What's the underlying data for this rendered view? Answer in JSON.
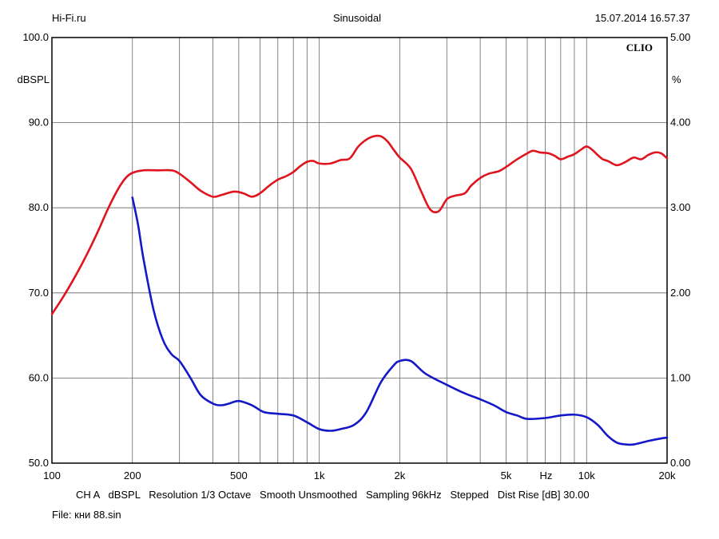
{
  "header": {
    "left": "Hi-Fi.ru",
    "center": "Sinusoidal",
    "right": "15.07.2014 16.57.37"
  },
  "footer": {
    "settings": "CH A   dBSPL   Resolution 1/3 Octave   Smooth Unsmoothed   Sampling 96kHz   Stepped   Dist Rise [dB] 30.00",
    "file": "File: кни 88.sin"
  },
  "chart_data": {
    "type": "line",
    "brand": "CLIO",
    "xlabel": "Hz",
    "ylabel": "dBSPL",
    "y2label": "%",
    "xscale": "log",
    "xlim": [
      100,
      20000
    ],
    "ylim": [
      50,
      100
    ],
    "y2lim": [
      0,
      5
    ],
    "x_tick_values": [
      100,
      200,
      500,
      1000,
      2000,
      5000,
      10000,
      20000
    ],
    "x_tick_labels": [
      "100",
      "200",
      "500",
      "1k",
      "2k",
      "5k",
      "10k",
      "20k"
    ],
    "y_tick_values": [
      50,
      60,
      70,
      80,
      90,
      100
    ],
    "y_tick_labels": [
      "50.0",
      "60.0",
      "70.0",
      "80.0",
      "90.0",
      "100.0"
    ],
    "y2_tick_values": [
      0,
      1,
      2,
      3,
      4,
      5
    ],
    "y2_tick_labels": [
      "0.00",
      "1.00",
      "2.00",
      "3.00",
      "4.00",
      "5.00"
    ],
    "grid": true,
    "series": [
      {
        "axis": "left",
        "color": "#e0141e",
        "points": [
          [
            100,
            67.5
          ],
          [
            110,
            69.5
          ],
          [
            120,
            71.5
          ],
          [
            130,
            73.5
          ],
          [
            140,
            75.5
          ],
          [
            150,
            77.5
          ],
          [
            160,
            79.5
          ],
          [
            170,
            81.2
          ],
          [
            180,
            82.6
          ],
          [
            190,
            83.6
          ],
          [
            200,
            84.1
          ],
          [
            220,
            84.4
          ],
          [
            250,
            84.4
          ],
          [
            280,
            84.4
          ],
          [
            300,
            84.0
          ],
          [
            330,
            83.0
          ],
          [
            360,
            82.0
          ],
          [
            400,
            81.3
          ],
          [
            430,
            81.5
          ],
          [
            480,
            81.9
          ],
          [
            520,
            81.7
          ],
          [
            560,
            81.3
          ],
          [
            600,
            81.7
          ],
          [
            650,
            82.6
          ],
          [
            700,
            83.3
          ],
          [
            750,
            83.7
          ],
          [
            800,
            84.2
          ],
          [
            850,
            84.9
          ],
          [
            900,
            85.4
          ],
          [
            950,
            85.5
          ],
          [
            1000,
            85.2
          ],
          [
            1100,
            85.2
          ],
          [
            1200,
            85.6
          ],
          [
            1300,
            85.8
          ],
          [
            1400,
            87.2
          ],
          [
            1500,
            88.0
          ],
          [
            1600,
            88.4
          ],
          [
            1700,
            88.4
          ],
          [
            1800,
            87.8
          ],
          [
            1900,
            86.8
          ],
          [
            2000,
            85.9
          ],
          [
            2200,
            84.6
          ],
          [
            2400,
            82.0
          ],
          [
            2600,
            79.8
          ],
          [
            2800,
            79.6
          ],
          [
            3000,
            81.0
          ],
          [
            3200,
            81.4
          ],
          [
            3500,
            81.7
          ],
          [
            3700,
            82.6
          ],
          [
            4000,
            83.5
          ],
          [
            4300,
            84.0
          ],
          [
            4700,
            84.3
          ],
          [
            5000,
            84.8
          ],
          [
            5500,
            85.7
          ],
          [
            6000,
            86.4
          ],
          [
            6300,
            86.7
          ],
          [
            6700,
            86.5
          ],
          [
            7200,
            86.4
          ],
          [
            7600,
            86.1
          ],
          [
            8000,
            85.7
          ],
          [
            8500,
            86.0
          ],
          [
            9000,
            86.3
          ],
          [
            9500,
            86.8
          ],
          [
            10000,
            87.2
          ],
          [
            10500,
            86.8
          ],
          [
            11000,
            86.2
          ],
          [
            11500,
            85.7
          ],
          [
            12000,
            85.5
          ],
          [
            13000,
            85.0
          ],
          [
            14000,
            85.4
          ],
          [
            15000,
            85.9
          ],
          [
            16000,
            85.7
          ],
          [
            17000,
            86.2
          ],
          [
            18000,
            86.5
          ],
          [
            19000,
            86.4
          ],
          [
            20000,
            85.8
          ]
        ]
      },
      {
        "axis": "right",
        "color": "#1418c8",
        "points": [
          [
            200,
            3.12
          ],
          [
            210,
            2.8
          ],
          [
            220,
            2.4
          ],
          [
            240,
            1.8
          ],
          [
            260,
            1.45
          ],
          [
            280,
            1.28
          ],
          [
            300,
            1.2
          ],
          [
            330,
            1.0
          ],
          [
            360,
            0.8
          ],
          [
            400,
            0.7
          ],
          [
            430,
            0.68
          ],
          [
            460,
            0.7
          ],
          [
            500,
            0.73
          ],
          [
            560,
            0.68
          ],
          [
            620,
            0.6
          ],
          [
            700,
            0.58
          ],
          [
            800,
            0.56
          ],
          [
            900,
            0.48
          ],
          [
            1000,
            0.4
          ],
          [
            1100,
            0.38
          ],
          [
            1200,
            0.4
          ],
          [
            1350,
            0.45
          ],
          [
            1500,
            0.6
          ],
          [
            1700,
            0.95
          ],
          [
            1900,
            1.15
          ],
          [
            2000,
            1.2
          ],
          [
            2200,
            1.2
          ],
          [
            2500,
            1.05
          ],
          [
            3000,
            0.92
          ],
          [
            3500,
            0.82
          ],
          [
            4000,
            0.75
          ],
          [
            4500,
            0.68
          ],
          [
            5000,
            0.6
          ],
          [
            5500,
            0.56
          ],
          [
            6000,
            0.52
          ],
          [
            7000,
            0.53
          ],
          [
            8000,
            0.56
          ],
          [
            9000,
            0.57
          ],
          [
            10000,
            0.54
          ],
          [
            11000,
            0.45
          ],
          [
            12000,
            0.32
          ],
          [
            13000,
            0.24
          ],
          [
            14000,
            0.22
          ],
          [
            15000,
            0.22
          ],
          [
            17000,
            0.26
          ],
          [
            19000,
            0.29
          ],
          [
            20000,
            0.3
          ]
        ]
      }
    ]
  }
}
